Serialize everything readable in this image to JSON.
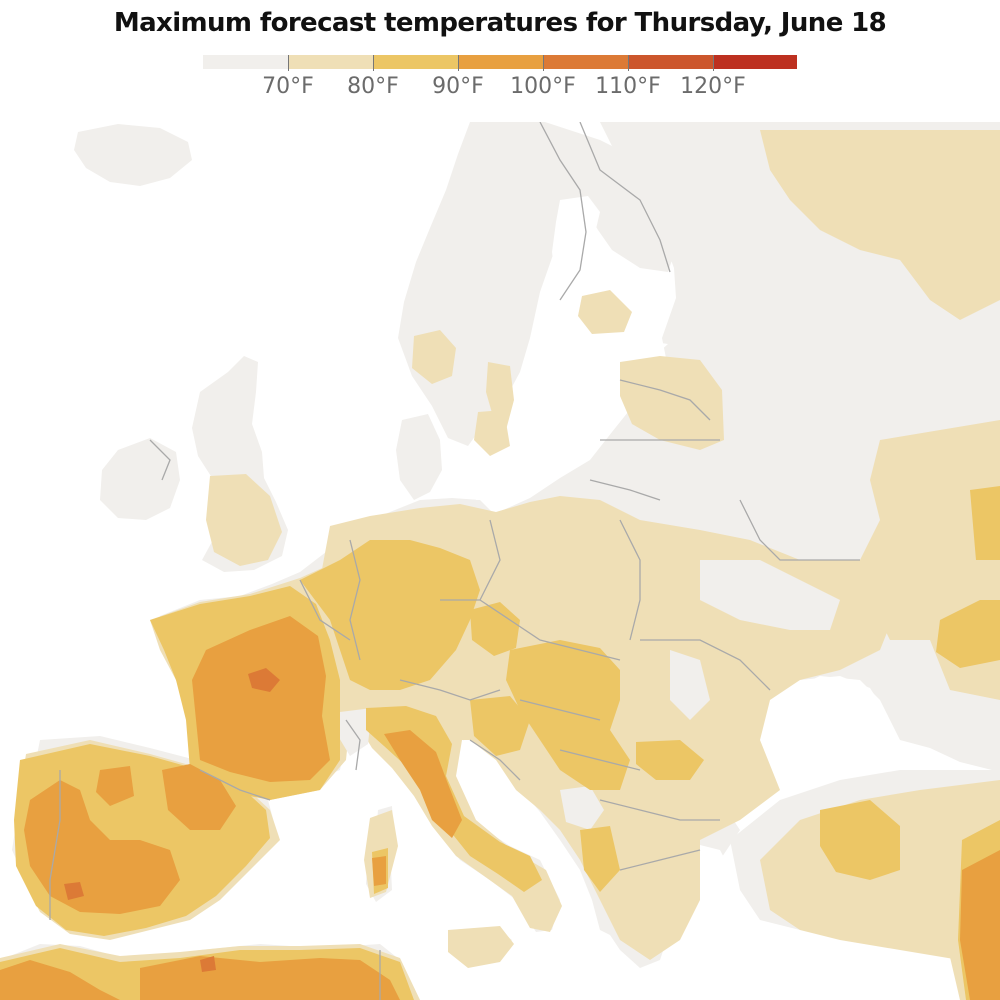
{
  "title": "Maximum forecast temperatures for Thursday, June 18",
  "legend": {
    "bins": [
      {
        "color": "#f1efec"
      },
      {
        "color": "#efdfb6"
      },
      {
        "color": "#ecc665"
      },
      {
        "color": "#e8a040"
      },
      {
        "color": "#dc7a36"
      },
      {
        "color": "#cc562c"
      },
      {
        "color": "#bd3020"
      }
    ],
    "labels": [
      "70°F",
      "80°F",
      "90°F",
      "100°F",
      "110°F",
      "120°F"
    ]
  },
  "map": {
    "colors": {
      "sea": "#ffffff",
      "land_below_70": "#f1efec",
      "t70_80": "#efdfb6",
      "t80_90": "#ecc665",
      "t90_100": "#e8a040",
      "t100_110": "#dc7a36",
      "border": "#a9a9a9"
    }
  }
}
